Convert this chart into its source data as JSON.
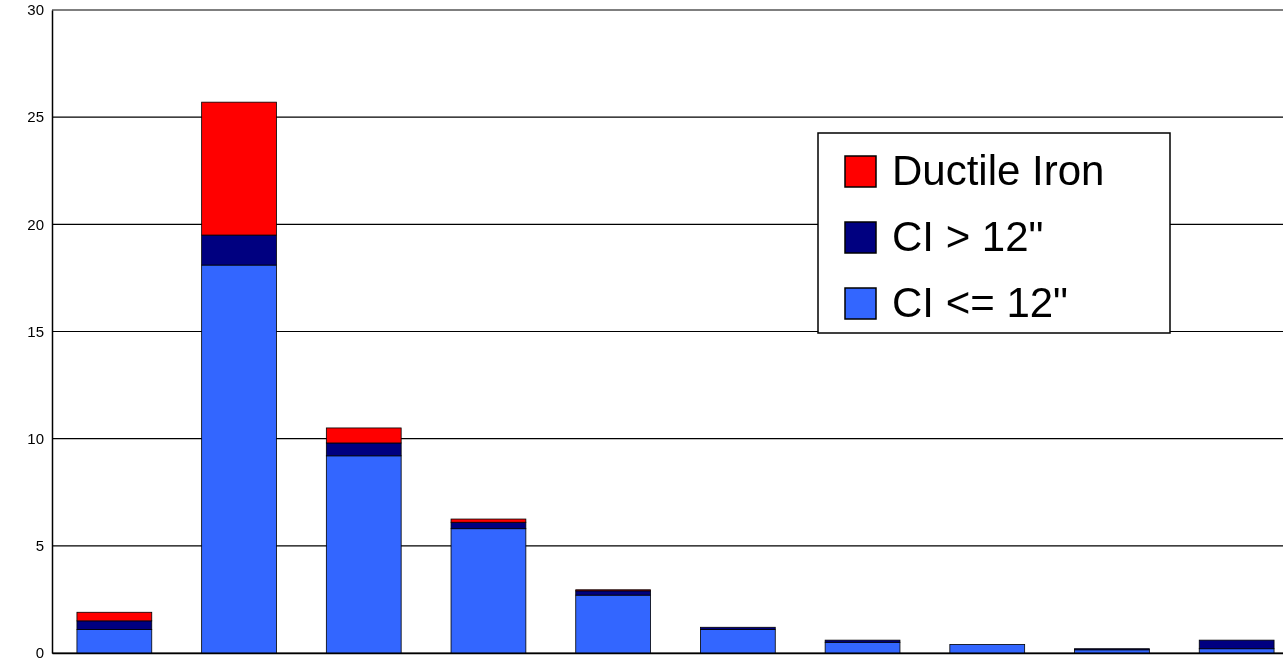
{
  "chart_data": {
    "type": "bar",
    "stacked": true,
    "categories": [
      null,
      null,
      null,
      null,
      null,
      null,
      null,
      null,
      null,
      null
    ],
    "series": [
      {
        "name": "CI <= 12\"",
        "color": "#3366ff",
        "values": [
          1.1,
          18.1,
          9.2,
          5.8,
          2.7,
          1.1,
          0.5,
          0.4,
          0.15,
          0.2
        ]
      },
      {
        "name": "CI > 12\"",
        "color": "#000080",
        "values": [
          0.4,
          1.4,
          0.6,
          0.3,
          0.2,
          0.1,
          0.1,
          null,
          0.05,
          0.4
        ]
      },
      {
        "name": "Ductile Iron",
        "color": "#ff0000",
        "values": [
          0.4,
          6.2,
          0.7,
          0.15,
          0.05,
          null,
          null,
          null,
          null,
          null
        ]
      }
    ],
    "ylim": [
      0,
      30
    ],
    "yticks": [
      0,
      5,
      10,
      15,
      20,
      25,
      30
    ],
    "grid": "y",
    "legend": "top right"
  }
}
